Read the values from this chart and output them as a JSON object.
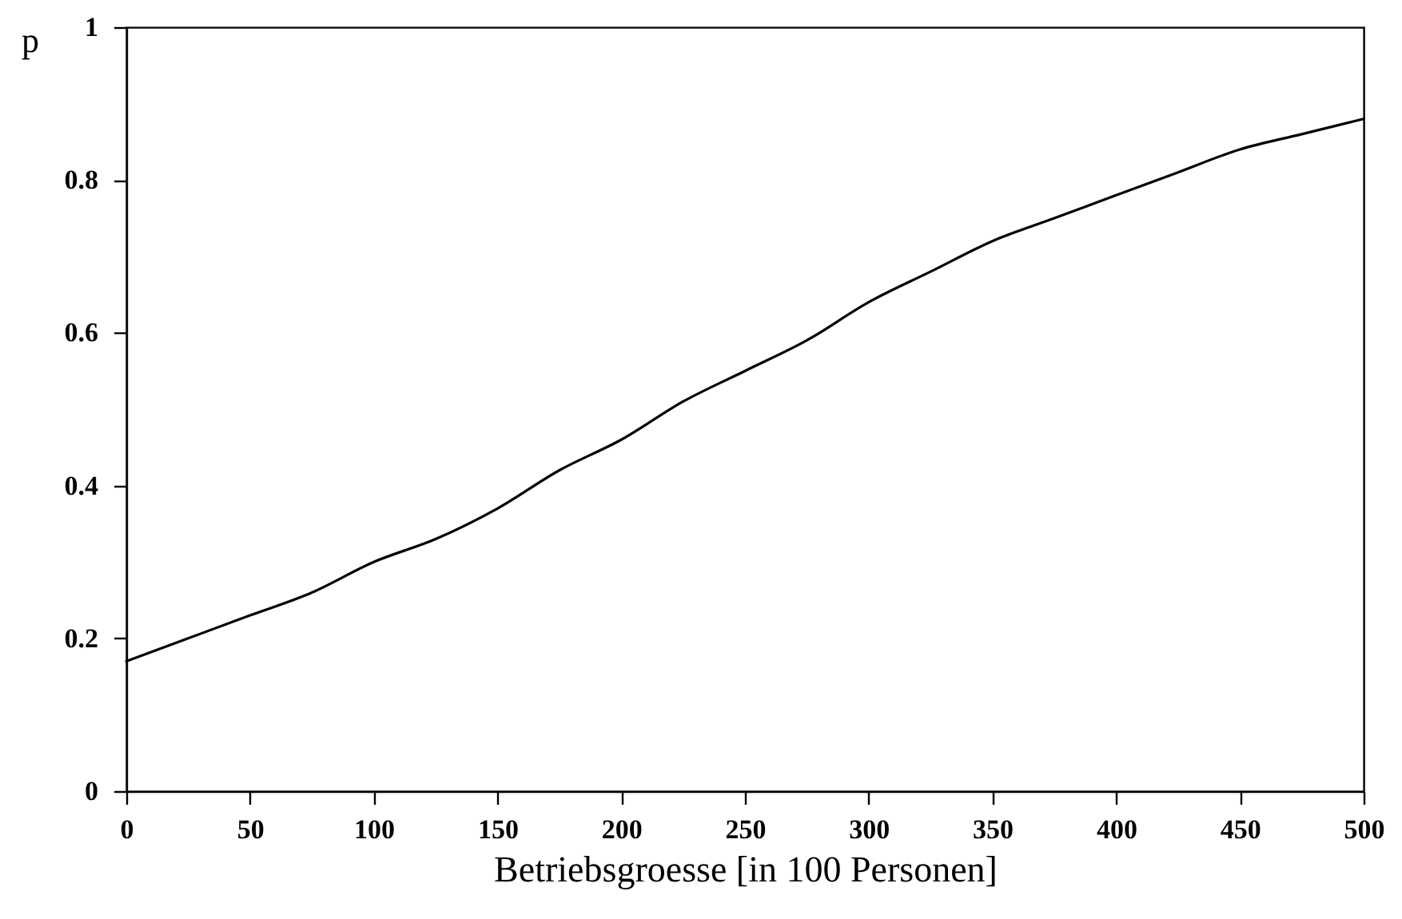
{
  "chart_data": {
    "type": "line",
    "xlabel": "Betriebsgroesse [in 100 Personen]",
    "ylabel": "p",
    "x": [
      0,
      25,
      50,
      75,
      100,
      125,
      150,
      175,
      200,
      225,
      250,
      275,
      300,
      325,
      350,
      375,
      400,
      425,
      450,
      475,
      500
    ],
    "series": [
      {
        "color": "#000000",
        "values": [
          0.17,
          0.2,
          0.23,
          0.26,
          0.3,
          0.33,
          0.37,
          0.42,
          0.46,
          0.51,
          0.55,
          0.59,
          0.64,
          0.68,
          0.72,
          0.75,
          0.78,
          0.81,
          0.84,
          0.86,
          0.88
        ]
      }
    ],
    "xlim": [
      0,
      500
    ],
    "xticks": [
      0,
      50,
      100,
      150,
      200,
      250,
      300,
      350,
      400,
      450,
      500
    ],
    "ylim": [
      0,
      1
    ],
    "yticks": [
      0,
      0.2,
      0.4,
      0.6,
      0.8,
      1
    ],
    "grid": false,
    "marker": "none",
    "line_style": "solid"
  }
}
